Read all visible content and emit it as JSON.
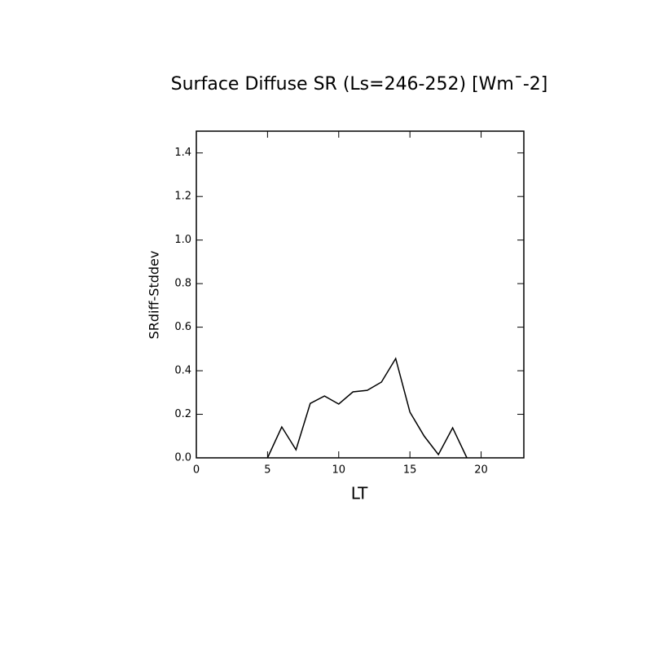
{
  "chart_data": {
    "type": "line",
    "title": "Surface Diffuse SR (Ls=246-252) [Wm¯-2]",
    "x_label": "LT",
    "y_label": "SRdiff-Stddev",
    "series": [
      {
        "color": "#000000",
        "x": [
          5,
          6,
          7,
          8,
          9,
          10,
          11,
          12,
          13,
          14,
          15,
          16,
          17,
          18,
          19
        ],
        "values": [
          0.0,
          0.142,
          0.037,
          0.25,
          0.284,
          0.247,
          0.303,
          0.31,
          0.348,
          0.456,
          0.21,
          0.1,
          0.015,
          0.138,
          0.0
        ]
      }
    ],
    "xlim": [
      0,
      23
    ],
    "xticks": [
      0,
      5,
      10,
      15,
      20
    ],
    "ylim": [
      0,
      1.5
    ],
    "yticks": [
      {
        "value": 0,
        "label": "0.0"
      },
      0.2,
      0.4,
      0.6,
      0.8,
      {
        "value": 1,
        "label": "1.0"
      },
      1.2,
      1.4
    ],
    "grid": false
  }
}
